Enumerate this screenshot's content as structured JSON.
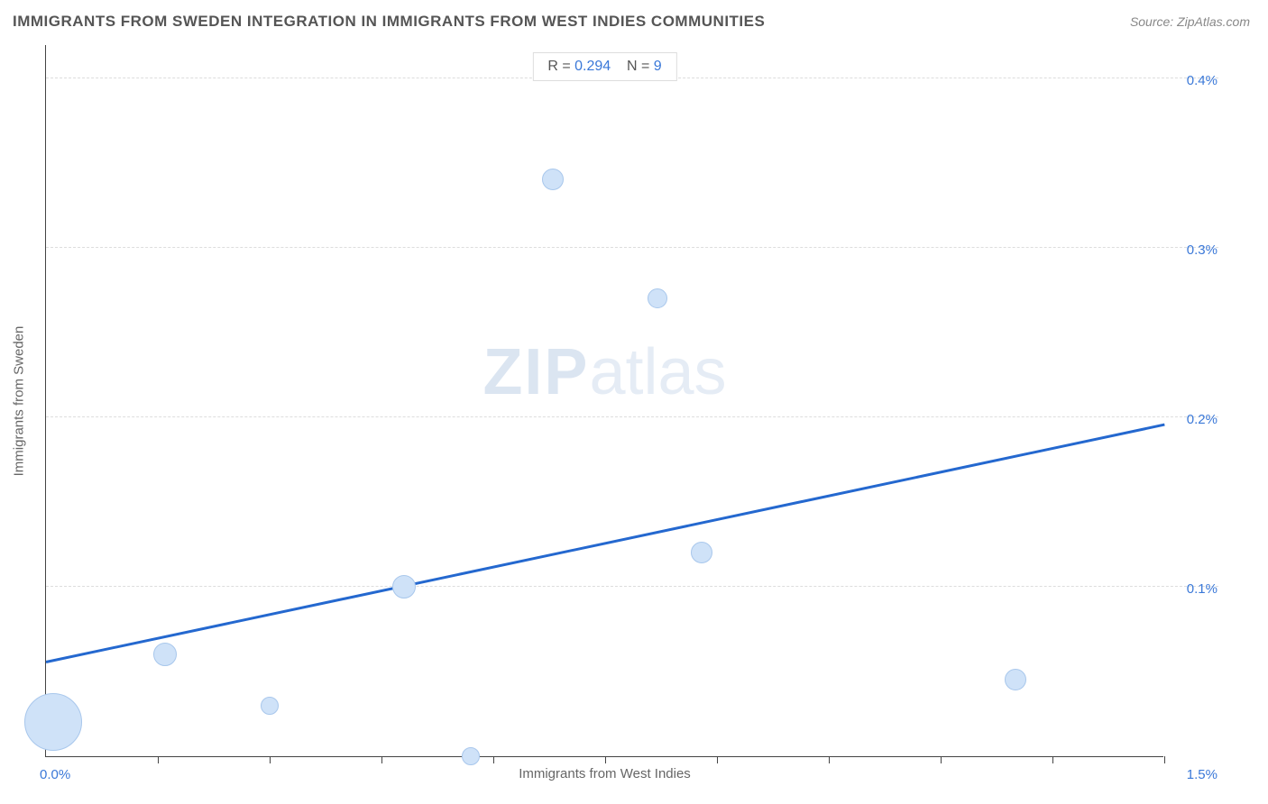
{
  "title": "IMMIGRANTS FROM SWEDEN INTEGRATION IN IMMIGRANTS FROM WEST INDIES COMMUNITIES",
  "source": "Source: ZipAtlas.com",
  "watermark_bold": "ZIP",
  "watermark_light": "atlas",
  "chart": {
    "type": "scatter",
    "xlabel": "Immigrants from West Indies",
    "ylabel": "Immigrants from Sweden",
    "xlim": [
      0.0,
      1.5
    ],
    "ylim": [
      0.0,
      0.42
    ],
    "x_min_label": "0.0%",
    "x_max_label": "1.5%",
    "y_ticks": [
      0.1,
      0.2,
      0.3,
      0.4
    ],
    "y_tick_labels": [
      "0.1%",
      "0.2%",
      "0.3%",
      "0.4%"
    ],
    "x_ticks": [
      0.15,
      0.3,
      0.45,
      0.6,
      0.75,
      0.9,
      1.05,
      1.2,
      1.35,
      1.5
    ],
    "bubble_fill": "#cfe2f8",
    "bubble_stroke": "#a8c7ec",
    "trend_color": "#2468cf",
    "grid_color": "#dddddd",
    "axis_color": "#444444",
    "axis_value_color": "#3a78d8",
    "background_color": "#ffffff",
    "points": [
      {
        "x": 0.01,
        "y": 0.02,
        "r": 32
      },
      {
        "x": 0.16,
        "y": 0.06,
        "r": 13
      },
      {
        "x": 0.3,
        "y": 0.03,
        "r": 10
      },
      {
        "x": 0.48,
        "y": 0.1,
        "r": 13
      },
      {
        "x": 0.57,
        "y": 0.0,
        "r": 10
      },
      {
        "x": 0.68,
        "y": 0.34,
        "r": 12
      },
      {
        "x": 0.82,
        "y": 0.27,
        "r": 11
      },
      {
        "x": 0.88,
        "y": 0.12,
        "r": 12
      },
      {
        "x": 1.3,
        "y": 0.045,
        "r": 12
      }
    ],
    "trend": {
      "y_at_xmin": 0.055,
      "y_at_xmax": 0.195
    },
    "stats": {
      "r_label": "R =",
      "r_value": "0.294",
      "n_label": "N =",
      "n_value": "9"
    }
  }
}
